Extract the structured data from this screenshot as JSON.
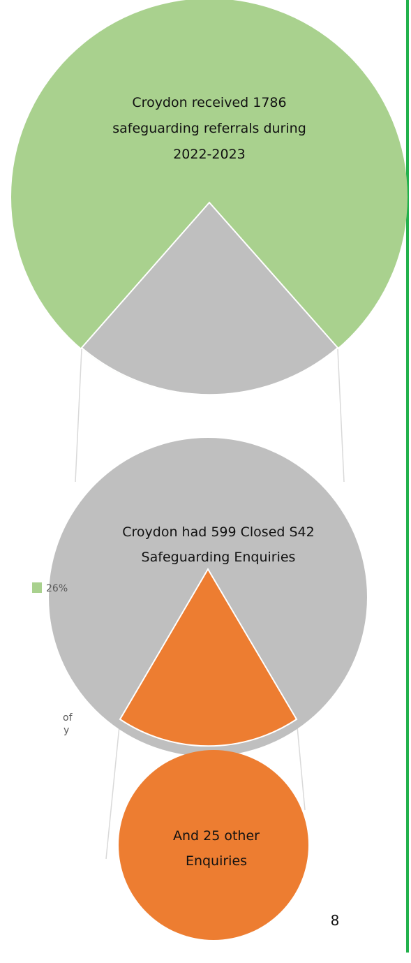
{
  "top_circle": {
    "lines": [
      "Croydon received 1786",
      "safeguarding referrals during",
      "2022-2023"
    ]
  },
  "middle_circle": {
    "lines": [
      "Croydon had 599 Closed S42",
      "Safeguarding Enquiries"
    ]
  },
  "bottom_circle": {
    "lines": [
      "And 25 other",
      "Enquiries"
    ]
  },
  "legend_fragment": {
    "label": "26%"
  },
  "cropped_text": [
    "of",
    "y"
  ],
  "page_number": "8"
}
